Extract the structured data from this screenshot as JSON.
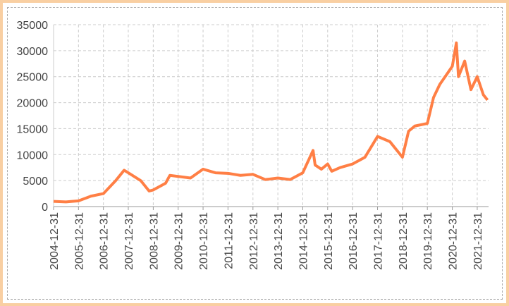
{
  "chart_data": {
    "type": "line",
    "x": [
      "2004-12-31",
      "2005-06-30",
      "2005-12-31",
      "2006-06-30",
      "2006-12-31",
      "2007-06-30",
      "2007-10-31",
      "2007-12-31",
      "2008-06-30",
      "2008-10-31",
      "2008-12-31",
      "2009-06-30",
      "2009-08-31",
      "2009-12-31",
      "2010-06-30",
      "2010-12-31",
      "2011-06-30",
      "2011-12-31",
      "2012-06-30",
      "2012-12-31",
      "2013-06-30",
      "2013-12-31",
      "2014-06-30",
      "2014-12-31",
      "2015-05-31",
      "2015-06-30",
      "2015-09-30",
      "2015-12-31",
      "2016-02-29",
      "2016-06-30",
      "2016-12-31",
      "2017-06-30",
      "2017-12-31",
      "2018-06-30",
      "2018-12-31",
      "2019-03-31",
      "2019-06-30",
      "2019-12-31",
      "2020-03-31",
      "2020-06-30",
      "2020-12-31",
      "2021-02-28",
      "2021-03-31",
      "2021-06-30",
      "2021-09-30",
      "2021-12-31",
      "2022-03-31",
      "2022-05-31"
    ],
    "series": [
      {
        "color": "#ff7f45",
        "values": [
          1000,
          900,
          1100,
          2000,
          2500,
          5000,
          7000,
          6500,
          5000,
          3000,
          3200,
          4500,
          6000,
          5800,
          5500,
          7200,
          6500,
          6400,
          6000,
          6200,
          5200,
          5500,
          5200,
          6500,
          10800,
          8000,
          7200,
          8200,
          6800,
          7500,
          8200,
          9500,
          13500,
          12500,
          9500,
          14500,
          15500,
          16000,
          21000,
          23500,
          27000,
          31500,
          25000,
          28000,
          22500,
          25000,
          21500,
          20500
        ]
      }
    ],
    "xlim": [
      "2004-12-31",
      "2022-06-15"
    ],
    "xticks": [
      "2004-12-31",
      "2005-12-31",
      "2006-12-31",
      "2007-12-31",
      "2008-12-31",
      "2009-12-31",
      "2010-12-31",
      "2011-12-31",
      "2012-12-31",
      "2013-12-31",
      "2014-12-31",
      "2015-12-31",
      "2016-12-31",
      "2017-12-31",
      "2018-12-31",
      "2019-12-31",
      "2020-12-31",
      "2021-12-31"
    ],
    "ylim": [
      0,
      35000
    ],
    "yticks": [
      0,
      5000,
      10000,
      15000,
      20000,
      25000,
      30000,
      35000
    ],
    "grid": true
  }
}
